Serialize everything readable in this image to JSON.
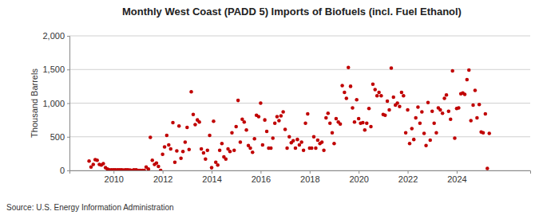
{
  "chart_data": {
    "type": "scatter",
    "title": "Monthly West Coast (PADD 5) Imports of Biofuels (incl. Fuel Ethanol)",
    "y_label": "Thousand Barrels",
    "source": "Source: U.S. Energy Information Administration",
    "x": [
      2009.0,
      2009.08,
      2009.17,
      2009.25,
      2009.33,
      2009.42,
      2009.5,
      2009.58,
      2009.67,
      2009.75,
      2009.83,
      2009.92,
      2010.0,
      2010.08,
      2010.17,
      2010.25,
      2010.33,
      2010.42,
      2010.5,
      2010.58,
      2010.67,
      2010.75,
      2010.83,
      2010.92,
      2011.0,
      2011.08,
      2011.17,
      2011.25,
      2011.33,
      2011.42,
      2011.5,
      2011.58,
      2011.67,
      2011.75,
      2011.83,
      2011.92,
      2012.0,
      2012.08,
      2012.17,
      2012.25,
      2012.33,
      2012.42,
      2012.5,
      2012.58,
      2012.67,
      2012.75,
      2012.83,
      2012.92,
      2013.0,
      2013.08,
      2013.17,
      2013.25,
      2013.33,
      2013.42,
      2013.5,
      2013.58,
      2013.67,
      2013.75,
      2013.83,
      2013.92,
      2014.0,
      2014.08,
      2014.17,
      2014.25,
      2014.33,
      2014.42,
      2014.5,
      2014.58,
      2014.67,
      2014.75,
      2014.83,
      2014.92,
      2015.0,
      2015.08,
      2015.17,
      2015.25,
      2015.33,
      2015.42,
      2015.5,
      2015.58,
      2015.67,
      2015.75,
      2015.83,
      2015.92,
      2016.0,
      2016.08,
      2016.17,
      2016.25,
      2016.33,
      2016.42,
      2016.5,
      2016.58,
      2016.67,
      2016.75,
      2016.83,
      2016.92,
      2017.0,
      2017.08,
      2017.17,
      2017.25,
      2017.33,
      2017.42,
      2017.5,
      2017.58,
      2017.67,
      2017.75,
      2017.83,
      2017.92,
      2018.0,
      2018.08,
      2018.17,
      2018.25,
      2018.33,
      2018.42,
      2018.5,
      2018.58,
      2018.67,
      2018.75,
      2018.83,
      2018.92,
      2019.0,
      2019.08,
      2019.17,
      2019.25,
      2019.33,
      2019.42,
      2019.5,
      2019.58,
      2019.67,
      2019.75,
      2019.83,
      2019.92,
      2020.0,
      2020.08,
      2020.17,
      2020.25,
      2020.33,
      2020.42,
      2020.5,
      2020.58,
      2020.67,
      2020.75,
      2020.83,
      2020.92,
      2021.0,
      2021.08,
      2021.17,
      2021.25,
      2021.33,
      2021.42,
      2021.5,
      2021.58,
      2021.67,
      2021.75,
      2021.83,
      2021.92,
      2022.0,
      2022.08,
      2022.17,
      2022.25,
      2022.33,
      2022.42,
      2022.5,
      2022.58,
      2022.67,
      2022.75,
      2022.83,
      2022.92,
      2023.0,
      2023.08,
      2023.17,
      2023.25,
      2023.33,
      2023.42,
      2023.5,
      2023.58,
      2023.67,
      2023.75,
      2023.83,
      2023.92,
      2024.0,
      2024.08,
      2024.17,
      2024.25,
      2024.33,
      2024.42,
      2024.5,
      2024.58,
      2024.67,
      2024.75,
      2024.83,
      2024.92,
      2025.0,
      2025.08,
      2025.17,
      2025.25,
      2025.33
    ],
    "values": [
      140,
      50,
      90,
      160,
      150,
      90,
      80,
      100,
      40,
      20,
      10,
      10,
      10,
      10,
      10,
      10,
      10,
      5,
      10,
      10,
      5,
      0,
      10,
      10,
      0,
      0,
      0,
      0,
      50,
      20,
      490,
      150,
      90,
      110,
      60,
      0,
      240,
      350,
      520,
      380,
      320,
      710,
      120,
      290,
      660,
      180,
      280,
      420,
      640,
      310,
      1170,
      830,
      680,
      750,
      720,
      320,
      260,
      170,
      300,
      520,
      40,
      730,
      120,
      80,
      300,
      400,
      200,
      170,
      320,
      280,
      560,
      300,
      650,
      1040,
      420,
      760,
      720,
      600,
      370,
      330,
      270,
      470,
      820,
      800,
      1000,
      380,
      750,
      580,
      330,
      330,
      480,
      700,
      800,
      740,
      810,
      870,
      610,
      330,
      500,
      410,
      440,
      330,
      460,
      380,
      420,
      300,
      700,
      840,
      330,
      330,
      500,
      330,
      450,
      400,
      420,
      300,
      780,
      850,
      700,
      560,
      400,
      770,
      720,
      690,
      1260,
      1160,
      1070,
      1530,
      1250,
      930,
      720,
      1050,
      770,
      700,
      710,
      600,
      700,
      920,
      650,
      1280,
      1200,
      1110,
      1160,
      1110,
      830,
      820,
      1030,
      900,
      1520,
      1090,
      970,
      1000,
      950,
      1160,
      1110,
      560,
      900,
      400,
      620,
      460,
      780,
      940,
      700,
      870,
      550,
      370,
      1010,
      450,
      880,
      700,
      560,
      930,
      900,
      850,
      1070,
      1120,
      880,
      760,
      1480,
      480,
      920,
      930,
      1140,
      1150,
      1130,
      1350,
      1490,
      740,
      970,
      1190,
      780,
      980,
      570,
      560,
      840,
      30,
      550
    ],
    "color": "#c00000",
    "marker": "circle",
    "xlim": [
      2008.2,
      2027
    ],
    "xticks": [
      2010,
      2012,
      2014,
      2016,
      2018,
      2020,
      2022,
      2024
    ],
    "ylim": [
      0,
      2000
    ],
    "yticks": [
      0,
      500,
      {
        "value": 1000,
        "label": "1,000"
      },
      {
        "value": 1500,
        "label": "1,500"
      },
      {
        "value": 2000,
        "label": "2,000"
      }
    ],
    "grid": true
  }
}
